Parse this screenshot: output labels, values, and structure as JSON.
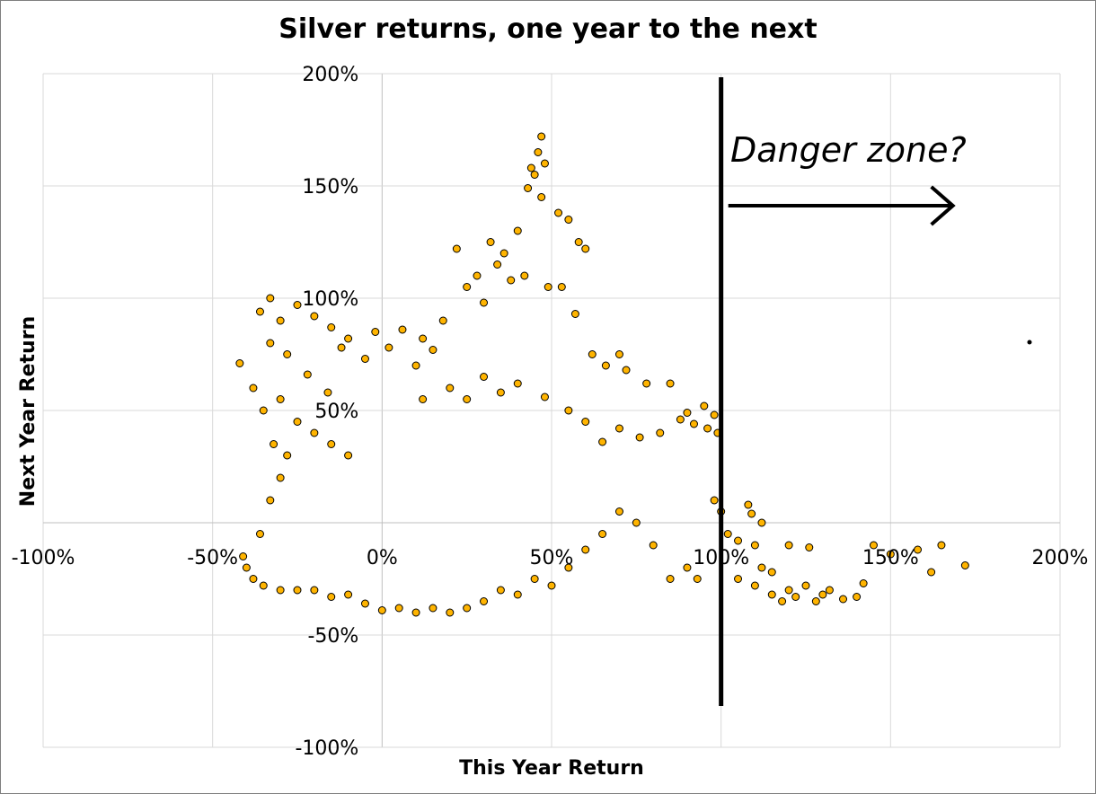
{
  "chart_data": {
    "type": "scatter",
    "title": "Silver returns, one year to the next",
    "xlabel": "This Year Return",
    "ylabel": "Next Year Return",
    "xlim": [
      -1.0,
      2.0
    ],
    "ylim": [
      -1.0,
      2.0
    ],
    "x_ticks": [
      "-100%",
      "-50%",
      "0%",
      "50%",
      "100%",
      "150%",
      "200%"
    ],
    "y_ticks": [
      "200%",
      "150%",
      "100%",
      "50%",
      "-50%",
      "-100%"
    ],
    "grid": true,
    "marker_color": "#FFB400",
    "marker_edge_color": "#000000",
    "annotation": {
      "text": "Danger zone?",
      "threshold_x": 1.0
    },
    "points": [
      [
        -0.42,
        0.71
      ],
      [
        -0.36,
        0.94
      ],
      [
        -0.33,
        1.0
      ],
      [
        -0.3,
        0.9
      ],
      [
        -0.25,
        0.97
      ],
      [
        -0.2,
        0.92
      ],
      [
        -0.15,
        0.87
      ],
      [
        -0.1,
        0.82
      ],
      [
        -0.38,
        0.6
      ],
      [
        -0.33,
        0.8
      ],
      [
        -0.28,
        0.75
      ],
      [
        -0.22,
        0.66
      ],
      [
        -0.16,
        0.58
      ],
      [
        -0.12,
        0.78
      ],
      [
        -0.05,
        0.73
      ],
      [
        -0.02,
        0.85
      ],
      [
        0.02,
        0.78
      ],
      [
        0.06,
        0.86
      ],
      [
        0.1,
        0.7
      ],
      [
        0.12,
        0.82
      ],
      [
        0.15,
        0.77
      ],
      [
        0.18,
        0.9
      ],
      [
        0.22,
        1.22
      ],
      [
        0.25,
        1.05
      ],
      [
        0.28,
        1.1
      ],
      [
        0.3,
        0.98
      ],
      [
        0.32,
        1.25
      ],
      [
        0.34,
        1.15
      ],
      [
        0.36,
        1.2
      ],
      [
        0.38,
        1.08
      ],
      [
        0.4,
        1.3
      ],
      [
        0.42,
        1.1
      ],
      [
        0.43,
        1.49
      ],
      [
        0.44,
        1.58
      ],
      [
        0.45,
        1.55
      ],
      [
        0.46,
        1.65
      ],
      [
        0.47,
        1.72
      ],
      [
        0.48,
        1.6
      ],
      [
        0.47,
        1.45
      ],
      [
        0.52,
        1.38
      ],
      [
        0.55,
        1.35
      ],
      [
        0.58,
        1.25
      ],
      [
        0.6,
        1.22
      ],
      [
        0.49,
        1.05
      ],
      [
        0.53,
        1.05
      ],
      [
        0.57,
        0.93
      ],
      [
        0.62,
        0.75
      ],
      [
        0.66,
        0.7
      ],
      [
        0.7,
        0.75
      ],
      [
        0.72,
        0.68
      ],
      [
        0.78,
        0.62
      ],
      [
        0.85,
        0.62
      ],
      [
        0.9,
        0.49
      ],
      [
        0.95,
        0.52
      ],
      [
        0.98,
        0.48
      ],
      [
        0.99,
        0.4
      ],
      [
        0.96,
        0.42
      ],
      [
        0.92,
        0.44
      ],
      [
        0.88,
        0.46
      ],
      [
        0.82,
        0.4
      ],
      [
        0.76,
        0.38
      ],
      [
        0.7,
        0.42
      ],
      [
        0.65,
        0.36
      ],
      [
        0.6,
        0.45
      ],
      [
        0.98,
        0.1
      ],
      [
        1.0,
        0.05
      ],
      [
        1.02,
        -0.05
      ],
      [
        1.05,
        -0.08
      ],
      [
        1.08,
        0.08
      ],
      [
        1.1,
        -0.1
      ],
      [
        1.12,
        -0.2
      ],
      [
        1.15,
        -0.32
      ],
      [
        1.18,
        -0.35
      ],
      [
        1.2,
        -0.3
      ],
      [
        1.22,
        -0.33
      ],
      [
        1.25,
        -0.28
      ],
      [
        1.28,
        -0.35
      ],
      [
        1.3,
        -0.32
      ],
      [
        1.32,
        -0.3
      ],
      [
        1.36,
        -0.34
      ],
      [
        1.4,
        -0.33
      ],
      [
        1.42,
        -0.27
      ],
      [
        1.45,
        -0.1
      ],
      [
        1.5,
        -0.14
      ],
      [
        1.58,
        -0.12
      ],
      [
        1.62,
        -0.22
      ],
      [
        1.65,
        -0.1
      ],
      [
        1.72,
        -0.19
      ],
      [
        1.09,
        0.04
      ],
      [
        1.12,
        0.0
      ],
      [
        1.05,
        -0.25
      ],
      [
        1.1,
        -0.28
      ],
      [
        1.15,
        -0.22
      ],
      [
        1.2,
        -0.1
      ],
      [
        1.26,
        -0.11
      ],
      [
        0.93,
        -0.25
      ],
      [
        0.9,
        -0.2
      ],
      [
        0.85,
        -0.25
      ],
      [
        0.8,
        -0.1
      ],
      [
        0.75,
        0.0
      ],
      [
        0.7,
        0.05
      ],
      [
        0.65,
        -0.05
      ],
      [
        0.6,
        -0.12
      ],
      [
        0.55,
        -0.2
      ],
      [
        0.5,
        -0.28
      ],
      [
        0.45,
        -0.25
      ],
      [
        0.4,
        -0.32
      ],
      [
        0.35,
        -0.3
      ],
      [
        0.3,
        -0.35
      ],
      [
        0.25,
        -0.38
      ],
      [
        0.2,
        -0.4
      ],
      [
        0.15,
        -0.38
      ],
      [
        0.1,
        -0.4
      ],
      [
        0.05,
        -0.38
      ],
      [
        0.0,
        -0.39
      ],
      [
        -0.05,
        -0.36
      ],
      [
        -0.1,
        -0.32
      ],
      [
        -0.15,
        -0.33
      ],
      [
        -0.2,
        -0.3
      ],
      [
        -0.25,
        -0.3
      ],
      [
        -0.3,
        -0.3
      ],
      [
        -0.35,
        -0.28
      ],
      [
        -0.38,
        -0.25
      ],
      [
        -0.4,
        -0.2
      ],
      [
        -0.41,
        -0.15
      ],
      [
        -0.36,
        -0.05
      ],
      [
        -0.33,
        0.1
      ],
      [
        -0.3,
        0.2
      ],
      [
        -0.28,
        0.3
      ],
      [
        -0.32,
        0.35
      ],
      [
        -0.35,
        0.5
      ],
      [
        -0.3,
        0.55
      ],
      [
        -0.25,
        0.45
      ],
      [
        -0.2,
        0.4
      ],
      [
        -0.15,
        0.35
      ],
      [
        -0.1,
        0.3
      ],
      [
        0.55,
        0.5
      ],
      [
        0.48,
        0.56
      ],
      [
        0.4,
        0.62
      ],
      [
        0.35,
        0.58
      ],
      [
        0.3,
        0.65
      ],
      [
        0.25,
        0.55
      ],
      [
        0.2,
        0.6
      ],
      [
        0.12,
        0.55
      ]
    ]
  }
}
